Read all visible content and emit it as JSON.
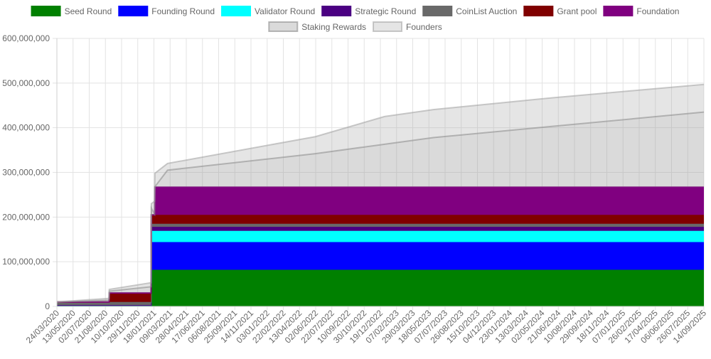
{
  "chart_data": {
    "type": "area",
    "stacked": true,
    "title": "",
    "xlabel": "",
    "ylabel": "",
    "ylim": [
      0,
      600000000
    ],
    "yticks": [
      0,
      100000000,
      200000000,
      300000000,
      400000000,
      500000000,
      600000000
    ],
    "ytick_labels": [
      "0",
      "100,000,000",
      "200,000,000",
      "300,000,000",
      "400,000,000",
      "500,000,000",
      "600,000,000"
    ],
    "grid": true,
    "legend_position": "top-center",
    "x_date_range": [
      "2020-03-24",
      "2025-09-14"
    ],
    "x_tick_labels": [
      "24/03/2020",
      "13/05/2020",
      "02/07/2020",
      "21/08/2020",
      "10/10/2020",
      "29/11/2020",
      "18/01/2021",
      "09/03/2021",
      "28/04/2021",
      "17/06/2021",
      "06/08/2021",
      "25/09/2021",
      "14/11/2021",
      "03/01/2022",
      "22/02/2022",
      "13/04/2022",
      "02/06/2022",
      "22/07/2022",
      "10/09/2022",
      "30/10/2022",
      "19/12/2022",
      "07/02/2023",
      "29/03/2023",
      "18/05/2023",
      "07/07/2023",
      "26/08/2023",
      "15/10/2023",
      "04/12/2023",
      "23/01/2024",
      "13/03/2024",
      "02/05/2024",
      "21/06/2024",
      "10/08/2024",
      "29/09/2024",
      "18/11/2024",
      "07/01/2025",
      "26/02/2025",
      "17/04/2025",
      "06/06/2025",
      "26/07/2025",
      "14/09/2025"
    ],
    "series": [
      {
        "name": "Seed Round",
        "color": "#008000",
        "border": "#008000",
        "points": [
          [
            "2020-03-24",
            3000000
          ],
          [
            "2021-01-09",
            3000000
          ],
          [
            "2021-01-10",
            82000000
          ],
          [
            "2025-09-14",
            82000000
          ]
        ]
      },
      {
        "name": "Founding Round",
        "color": "#0000ff",
        "border": "#0000ff",
        "points": [
          [
            "2020-03-24",
            0
          ],
          [
            "2021-01-09",
            0
          ],
          [
            "2021-01-10",
            62000000
          ],
          [
            "2025-09-14",
            62000000
          ]
        ]
      },
      {
        "name": "Validator Round",
        "color": "#00ffff",
        "border": "#00ffff",
        "points": [
          [
            "2020-03-24",
            0
          ],
          [
            "2021-01-09",
            0
          ],
          [
            "2021-01-10",
            25000000
          ],
          [
            "2025-09-14",
            25000000
          ]
        ]
      },
      {
        "name": "Strategic Round",
        "color": "#4b0082",
        "border": "#4b0082",
        "points": [
          [
            "2020-03-24",
            0
          ],
          [
            "2021-01-09",
            0
          ],
          [
            "2021-01-10",
            9000000
          ],
          [
            "2025-09-14",
            9000000
          ]
        ]
      },
      {
        "name": "CoinList Auction",
        "color": "#696969",
        "border": "#696969",
        "points": [
          [
            "2020-03-24",
            7000000
          ],
          [
            "2021-01-09",
            7000000
          ],
          [
            "2021-01-10",
            7000000
          ],
          [
            "2025-09-14",
            7000000
          ]
        ]
      },
      {
        "name": "Grant pool",
        "color": "#800000",
        "border": "#800000",
        "points": [
          [
            "2020-03-24",
            0
          ],
          [
            "2020-09-01",
            0
          ],
          [
            "2020-09-02",
            20000000
          ],
          [
            "2021-01-09",
            20000000
          ],
          [
            "2021-01-10",
            20000000
          ],
          [
            "2025-09-14",
            20000000
          ]
        ]
      },
      {
        "name": "Foundation",
        "color": "#800080",
        "border": "#800080",
        "points": [
          [
            "2020-03-24",
            0
          ],
          [
            "2021-01-20",
            0
          ],
          [
            "2021-01-21",
            62000000
          ],
          [
            "2025-09-14",
            62000000
          ]
        ]
      },
      {
        "name": "Staking Rewards",
        "color": "rgba(150,150,150,0.35)",
        "border": "rgba(140,140,140,0.6)",
        "points": [
          [
            "2020-03-24",
            0
          ],
          [
            "2020-09-01",
            4000000
          ],
          [
            "2021-01-09",
            14000000
          ],
          [
            "2021-01-10",
            15000000
          ],
          [
            "2021-01-21",
            1000000
          ],
          [
            "2021-03-01",
            38000000
          ],
          [
            "2022-06-01",
            75000000
          ],
          [
            "2023-06-01",
            111000000
          ],
          [
            "2024-06-01",
            136000000
          ],
          [
            "2025-09-14",
            168000000
          ]
        ]
      },
      {
        "name": "Founders",
        "color": "rgba(170,170,170,0.3)",
        "border": "rgba(160,160,160,0.55)",
        "points": [
          [
            "2020-03-24",
            0
          ],
          [
            "2020-09-01",
            4000000
          ],
          [
            "2021-01-09",
            9000000
          ],
          [
            "2021-01-10",
            10000000
          ],
          [
            "2021-01-21",
            30000000
          ],
          [
            "2021-03-01",
            15000000
          ],
          [
            "2022-06-01",
            38000000
          ],
          [
            "2023-01-01",
            62000000
          ],
          [
            "2024-06-01",
            64000000
          ],
          [
            "2025-09-14",
            62000000
          ]
        ]
      }
    ]
  }
}
